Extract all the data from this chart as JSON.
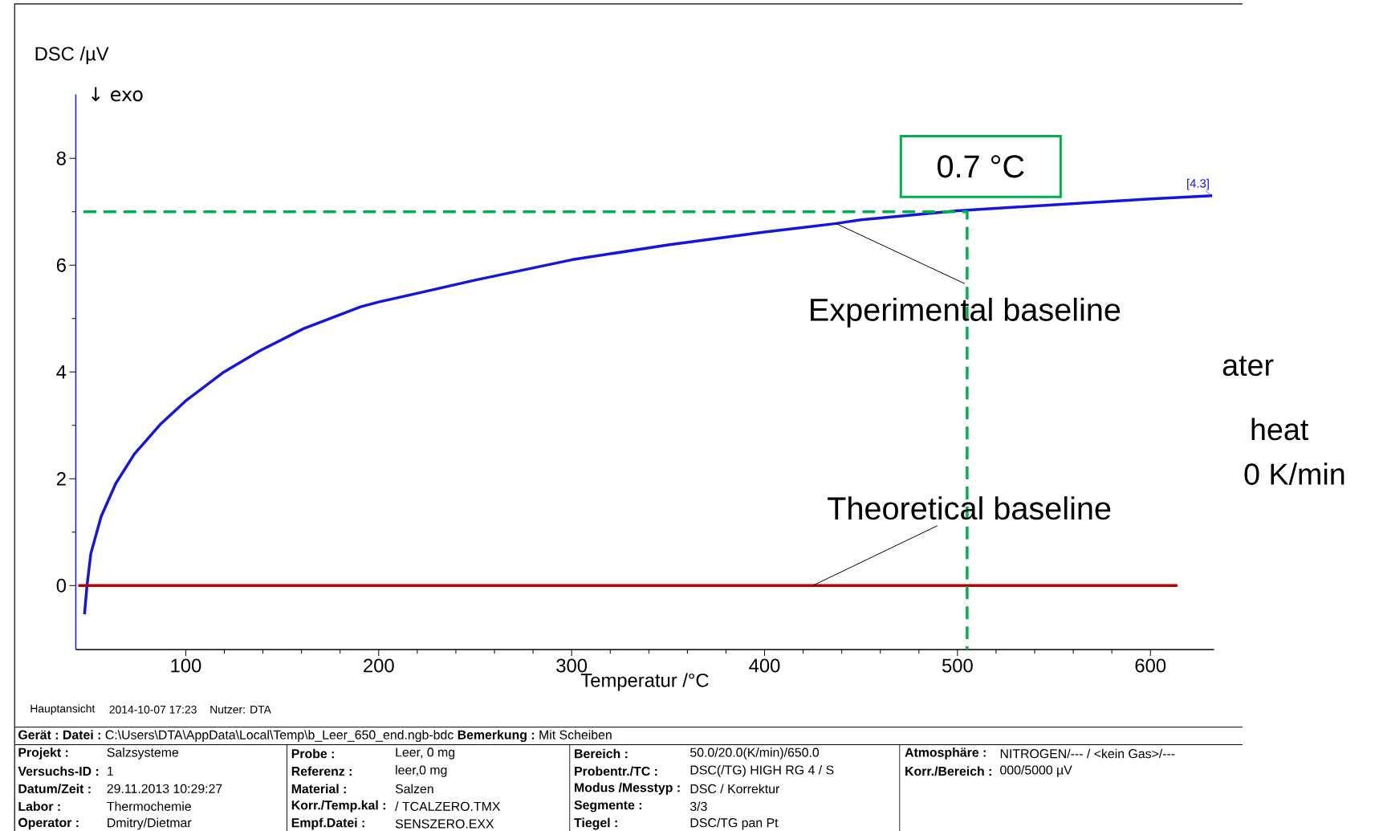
{
  "chart_data": {
    "type": "line",
    "xlabel": "Temperatur /°C",
    "ylabel": "DSC /µV",
    "xlim": [
      43,
      633
    ],
    "ylim": [
      -1.2,
      9.2
    ],
    "xticks": [
      100,
      200,
      300,
      400,
      500,
      600
    ],
    "yticks": [
      0,
      2,
      4,
      6,
      8
    ],
    "marker": "none",
    "series": [
      {
        "color": "#1515e0",
        "x": [
          47.5,
          48.8,
          50.8,
          56.1,
          63.7,
          73.3,
          86.6,
          100,
          119,
          138.1,
          161,
          190.6,
          200,
          250,
          300,
          350,
          400,
          437,
          450,
          500,
          550,
          600,
          632
        ],
        "values": [
          -0.54,
          0,
          0.6,
          1.29,
          1.91,
          2.46,
          3.01,
          3.46,
          3.98,
          4.39,
          4.81,
          5.22,
          5.31,
          5.72,
          6.1,
          6.38,
          6.62,
          6.78,
          6.85,
          7.02,
          7.13,
          7.24,
          7.3
        ]
      },
      {
        "color": "#c00000",
        "x": [
          44.3,
          614
        ],
        "values": [
          0,
          0
        ]
      },
      {
        "color": "#00b050",
        "line_style": "dashed",
        "x": [
          47,
          505,
          505
        ],
        "values": [
          7,
          7,
          -1.2
        ]
      }
    ],
    "annotations": [
      "↓ exo",
      "0.7 °C",
      {
        "text": "Experimental baseline",
        "x": 437,
        "y": 6.78
      },
      {
        "text": "Theoretical baseline",
        "x": 425,
        "y": 0
      },
      {
        "text": "[4.3]",
        "x": 632,
        "y": 7.3
      },
      "ater",
      "heat",
      "0 K/min",
      "Hauptansicht",
      "2014-10-07 17:23",
      "Nutzer: DTA",
      "Gerät :",
      "Datei :",
      "C:\\Users\\DTA\\AppData\\Local\\Temp\\b_Leer_650_end.ngb-bdc",
      "Bemerkung :",
      "Mit Scheiben",
      "Projekt :",
      "Salzsysteme",
      "Versuchs-ID :",
      "1",
      "Datum/Zeit :",
      "29.11.2013 10:29:27",
      "Labor :",
      "Thermochemie",
      "Operator :",
      "Dmitry/Dietmar",
      "Probe :",
      "Leer, 0 mg",
      "Referenz :",
      "leer,0 mg",
      "Material :",
      "Salzen",
      "Korr./Temp.kal :",
      "/ TCALZERO.TMX",
      "Empf.Datei :",
      "SENSZERO.EXX",
      "Bereich :",
      "50.0/20.0(K/min)/650.0",
      "Probentr./TC :",
      "DSC(/TG) HIGH RG 4 / S",
      "Modus /Messtyp :",
      "DSC / Korrektur",
      "Segmente :",
      "3/3",
      "Tiegel :",
      "DSC/TG pan Pt",
      "Atmosphäre :",
      "NITROGEN/--- / <kein Gas>/---",
      "Korr./Bereich :",
      "000/5000 µV"
    ]
  }
}
